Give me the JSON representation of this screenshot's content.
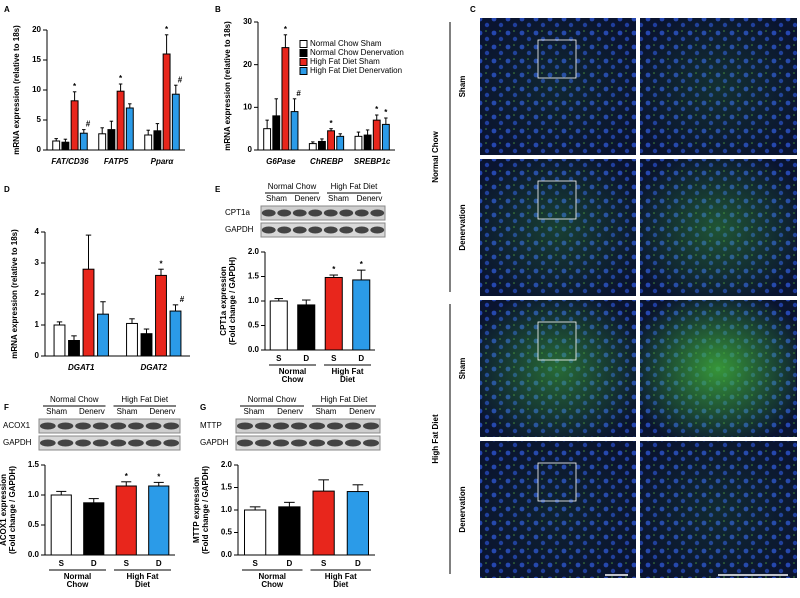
{
  "chart_data": [
    {
      "type": "bar",
      "panel": "A",
      "ylabel": "mRNA expression (relative to 18s)",
      "categories": [
        "FAT/CD36",
        "FATP5",
        "Pparα"
      ],
      "series": [
        {
          "color": "#ffffff",
          "values": [
            1.5,
            2.7,
            2.5
          ],
          "errors": [
            0.4,
            1.0,
            0.8
          ],
          "annotations": [
            null,
            null,
            null
          ]
        },
        {
          "color": "#000000",
          "values": [
            1.3,
            3.4,
            3.2
          ],
          "errors": [
            0.5,
            1.4,
            1.2
          ],
          "annotations": [
            null,
            null,
            null
          ]
        },
        {
          "color": "#e8261c",
          "values": [
            8.2,
            9.8,
            16.0
          ],
          "errors": [
            1.5,
            1.2,
            3.2
          ],
          "annotations": [
            "*",
            "*",
            "*"
          ]
        },
        {
          "color": "#2b9be8",
          "values": [
            2.8,
            7.0,
            9.3
          ],
          "errors": [
            0.6,
            0.7,
            1.5
          ],
          "annotations": [
            "#",
            null,
            "#"
          ]
        }
      ],
      "ylim": [
        0,
        20
      ],
      "yticks": [
        0,
        5,
        10,
        15,
        20
      ]
    },
    {
      "type": "bar",
      "panel": "B",
      "ylabel": "mRNA expression (relative to 18s)",
      "categories": [
        "G6Pase",
        "ChREBP",
        "SREBP1c"
      ],
      "series": [
        {
          "name": "Normal Chow Sham",
          "color": "#ffffff",
          "values": [
            5,
            1.5,
            3.2
          ],
          "errors": [
            2,
            0.4,
            1.0
          ],
          "annotations": [
            null,
            null,
            null
          ]
        },
        {
          "name": "Normal Chow Denervation",
          "color": "#000000",
          "values": [
            8,
            2.0,
            3.5
          ],
          "errors": [
            4,
            0.6,
            1.2
          ],
          "annotations": [
            null,
            null,
            null
          ]
        },
        {
          "name": "High Fat Diet Sham",
          "color": "#e8261c",
          "values": [
            24,
            4.5,
            7.0
          ],
          "errors": [
            3,
            0.5,
            1.2
          ],
          "annotations": [
            "*",
            "*",
            "*"
          ]
        },
        {
          "name": "High Fat Diet Denervation",
          "color": "#2b9be8",
          "values": [
            9,
            3.2,
            6.0
          ],
          "errors": [
            3,
            0.6,
            1.5
          ],
          "annotations": [
            "#",
            null,
            "*"
          ]
        }
      ],
      "ylim": [
        0,
        30
      ],
      "yticks": [
        0,
        10,
        20,
        30
      ]
    },
    {
      "type": "bar",
      "panel": "D",
      "ylabel": "mRNA expression (relative to 18s)",
      "categories": [
        "DGAT1",
        "DGAT2"
      ],
      "series": [
        {
          "color": "#ffffff",
          "values": [
            1.0,
            1.05
          ],
          "errors": [
            0.1,
            0.15
          ],
          "annotations": [
            null,
            null
          ]
        },
        {
          "color": "#000000",
          "values": [
            0.5,
            0.72
          ],
          "errors": [
            0.15,
            0.15
          ],
          "annotations": [
            null,
            null
          ]
        },
        {
          "color": "#e8261c",
          "values": [
            2.8,
            2.6
          ],
          "errors": [
            1.1,
            0.2
          ],
          "annotations": [
            null,
            "*"
          ]
        },
        {
          "color": "#2b9be8",
          "values": [
            1.35,
            1.45
          ],
          "errors": [
            0.4,
            0.2
          ],
          "annotations": [
            null,
            "#"
          ]
        }
      ],
      "ylim": [
        0,
        4
      ],
      "yticks": [
        0,
        1,
        2,
        3,
        4
      ]
    },
    {
      "type": "bar",
      "panel": "E",
      "ylabel": [
        "CPT1a expression",
        "(Fold change / GAPDH)"
      ],
      "categories": [
        "S",
        "D",
        "S",
        "D"
      ],
      "group_labels": [
        [
          "Normal",
          "Chow"
        ],
        [
          "High Fat",
          "Diet"
        ]
      ],
      "values": [
        1.0,
        0.92,
        1.48,
        1.43
      ],
      "errors": [
        0.05,
        0.1,
        0.05,
        0.2
      ],
      "annotations": [
        null,
        null,
        "*",
        "*"
      ],
      "colors": [
        "#ffffff",
        "#000000",
        "#e8261c",
        "#2b9be8"
      ],
      "ylim": [
        0,
        2
      ],
      "yticks": [
        {
          "value": 0,
          "label": "0.0"
        },
        0.5,
        {
          "value": 1,
          "label": "1.0"
        },
        1.5,
        {
          "value": 2,
          "label": "2.0"
        }
      ],
      "blot": {
        "groups": [
          "Normal Chow",
          "High Fat Diet"
        ],
        "lanes": [
          "Sham",
          "Denerv",
          "Sham",
          "Denerv"
        ],
        "rows": [
          "CPT1a",
          "GAPDH"
        ]
      }
    },
    {
      "type": "bar",
      "panel": "F",
      "ylabel": [
        "ACOX1 expression",
        "(Fold change / GAPDH)"
      ],
      "categories": [
        "S",
        "D",
        "S",
        "D"
      ],
      "group_labels": [
        [
          "Normal",
          "Chow"
        ],
        [
          "High Fat",
          "Diet"
        ]
      ],
      "values": [
        1.0,
        0.87,
        1.15,
        1.15
      ],
      "errors": [
        0.06,
        0.07,
        0.07,
        0.06
      ],
      "annotations": [
        null,
        null,
        "*",
        "*"
      ],
      "colors": [
        "#ffffff",
        "#000000",
        "#e8261c",
        "#2b9be8"
      ],
      "ylim": [
        0,
        1.5
      ],
      "yticks": [
        {
          "value": 0,
          "label": "0.0"
        },
        0.5,
        {
          "value": 1,
          "label": "1.0"
        },
        1.5
      ],
      "blot": {
        "groups": [
          "Normal Chow",
          "High Fat Diet"
        ],
        "lanes": [
          "Sham",
          "Denerv",
          "Sham",
          "Denerv"
        ],
        "rows": [
          "ACOX1",
          "GAPDH"
        ]
      }
    },
    {
      "type": "bar",
      "panel": "G",
      "ylabel": [
        "MTTP expression",
        "(Fold change / GAPDH)"
      ],
      "categories": [
        "S",
        "D",
        "S",
        "D"
      ],
      "group_labels": [
        [
          "Normal",
          "Chow"
        ],
        [
          "High Fat",
          "Diet"
        ]
      ],
      "values": [
        1.0,
        1.07,
        1.42,
        1.41
      ],
      "errors": [
        0.07,
        0.1,
        0.25,
        0.15
      ],
      "annotations": [
        null,
        null,
        null,
        null
      ],
      "colors": [
        "#ffffff",
        "#000000",
        "#e8261c",
        "#2b9be8"
      ],
      "ylim": [
        0,
        2
      ],
      "yticks": [
        {
          "value": 0,
          "label": "0.0"
        },
        0.5,
        {
          "value": 1,
          "label": "1.0"
        },
        1.5,
        {
          "value": 2,
          "label": "2.0"
        }
      ],
      "blot": {
        "groups": [
          "Normal Chow",
          "High Fat Diet"
        ],
        "lanes": [
          "Sham",
          "Denerv",
          "Sham",
          "Denerv"
        ],
        "rows": [
          "MTTP",
          "GAPDH"
        ]
      }
    }
  ],
  "micrograph": {
    "panel": "C",
    "groups": [
      "Normal Chow",
      "High Fat Diet"
    ],
    "rows": [
      "Sham",
      "Denervation",
      "Sham",
      "Denervation"
    ]
  }
}
